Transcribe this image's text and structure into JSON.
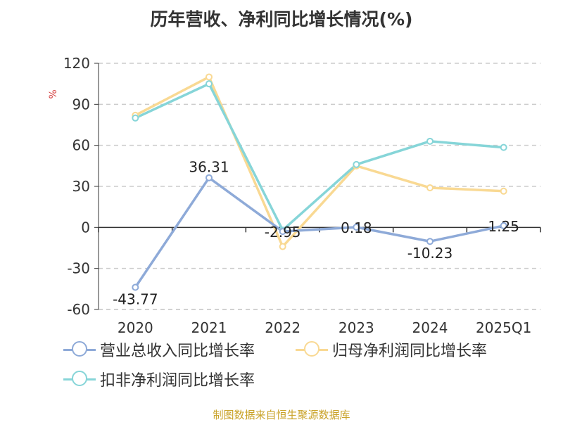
{
  "title": "历年营收、净利同比增长情况(%)",
  "source": "制图数据来自恒生聚源数据库",
  "chart_data": {
    "type": "line",
    "title": "历年营收、净利同比增长情况(%)",
    "ylabel": "%",
    "categories": [
      "2020",
      "2021",
      "2022",
      "2023",
      "2024",
      "2025Q1"
    ],
    "ylim": [
      -60,
      120
    ],
    "yticks": [
      120,
      90,
      60,
      30,
      0,
      -30,
      -60
    ],
    "grid": true,
    "legend": "bottom",
    "series": [
      {
        "name": "营业总收入同比增长率",
        "color": "#8eaad8",
        "values": [
          -43.77,
          36.31,
          -2.95,
          0.18,
          -10.23,
          1.25
        ],
        "labels": [
          "-43.77",
          "36.31",
          "-2.95",
          "0.18",
          "-10.23",
          "1.25"
        ]
      },
      {
        "name": "归母净利润同比增长率",
        "color": "#f9d993",
        "values": [
          82,
          110,
          -14,
          45,
          29,
          26.5
        ]
      },
      {
        "name": "扣非净利润同比增长率",
        "color": "#86d5d8",
        "values": [
          80,
          105,
          -2,
          46,
          63,
          58.5
        ]
      }
    ]
  }
}
